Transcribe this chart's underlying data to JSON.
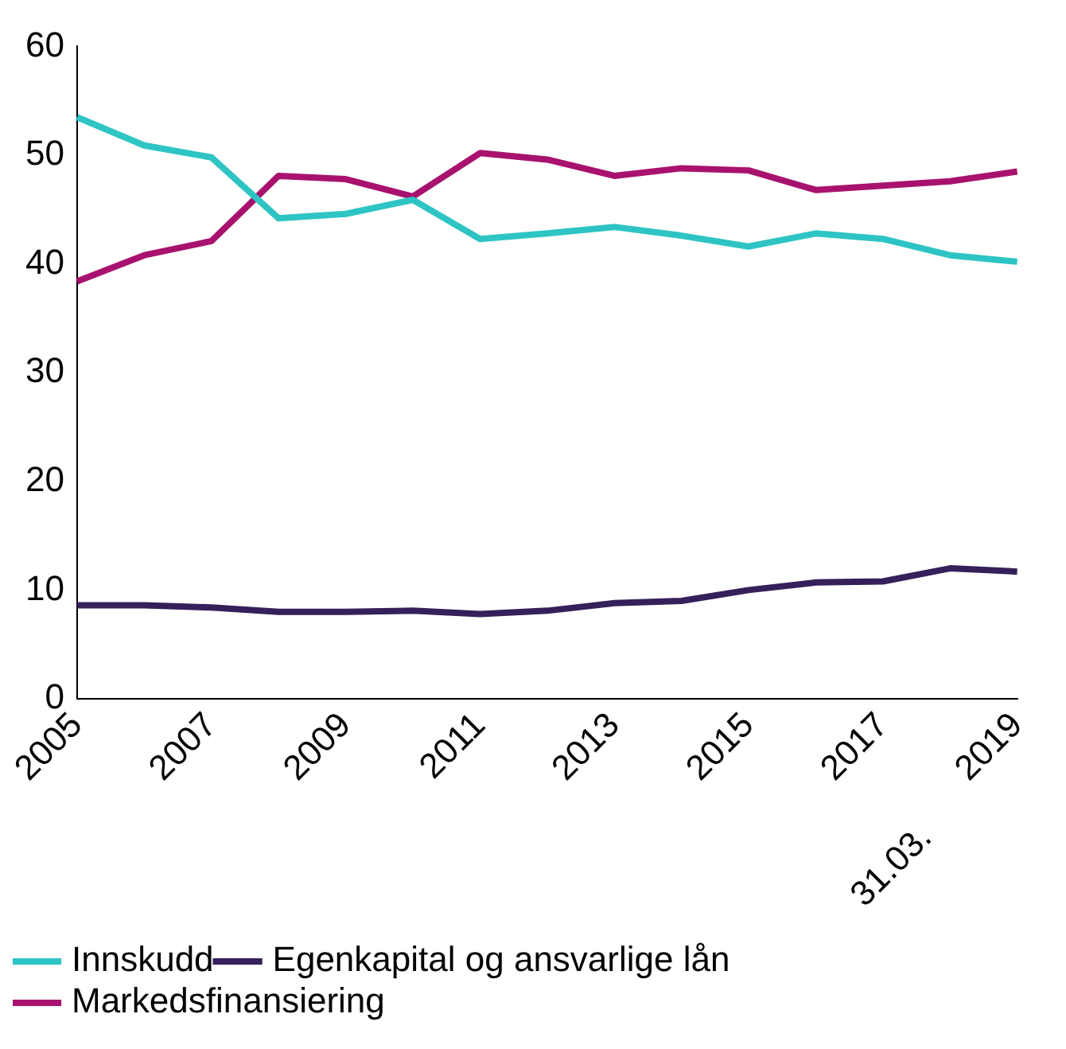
{
  "chart_data": {
    "type": "line",
    "categories": [
      "2005",
      null,
      "2007",
      null,
      "2009",
      null,
      "2011",
      null,
      "2013",
      null,
      "2015",
      null,
      "2017",
      null,
      "2019"
    ],
    "series": [
      {
        "name": "Innskudd",
        "color": "#2ec4c4",
        "values": [
          53.5,
          50.9,
          49.8,
          44.2,
          44.6,
          45.9,
          42.3,
          42.8,
          43.4,
          42.6,
          41.6,
          42.8,
          42.3,
          40.8,
          40.2
        ]
      },
      {
        "name": "Egenkapital og ansvarlige lån",
        "color": "#35205a",
        "values": [
          8.6,
          8.6,
          8.4,
          8.0,
          8.0,
          8.1,
          7.8,
          8.1,
          8.8,
          9.0,
          10.0,
          10.7,
          10.8,
          12.0,
          11.7
        ]
      },
      {
        "name": "Markedsfinansiering",
        "color": "#a8126e",
        "values": [
          38.4,
          40.8,
          42.1,
          48.1,
          47.8,
          46.2,
          50.2,
          49.6,
          48.1,
          48.8,
          48.6,
          46.8,
          47.2,
          47.6,
          48.5
        ]
      }
    ],
    "ylim": [
      0,
      60
    ],
    "yticks": [
      0,
      10,
      20,
      30,
      40,
      50,
      60
    ],
    "grid": false,
    "legend": "bottom left",
    "marker": "none",
    "line_style": "solid",
    "annotations": [
      "31.03."
    ]
  }
}
